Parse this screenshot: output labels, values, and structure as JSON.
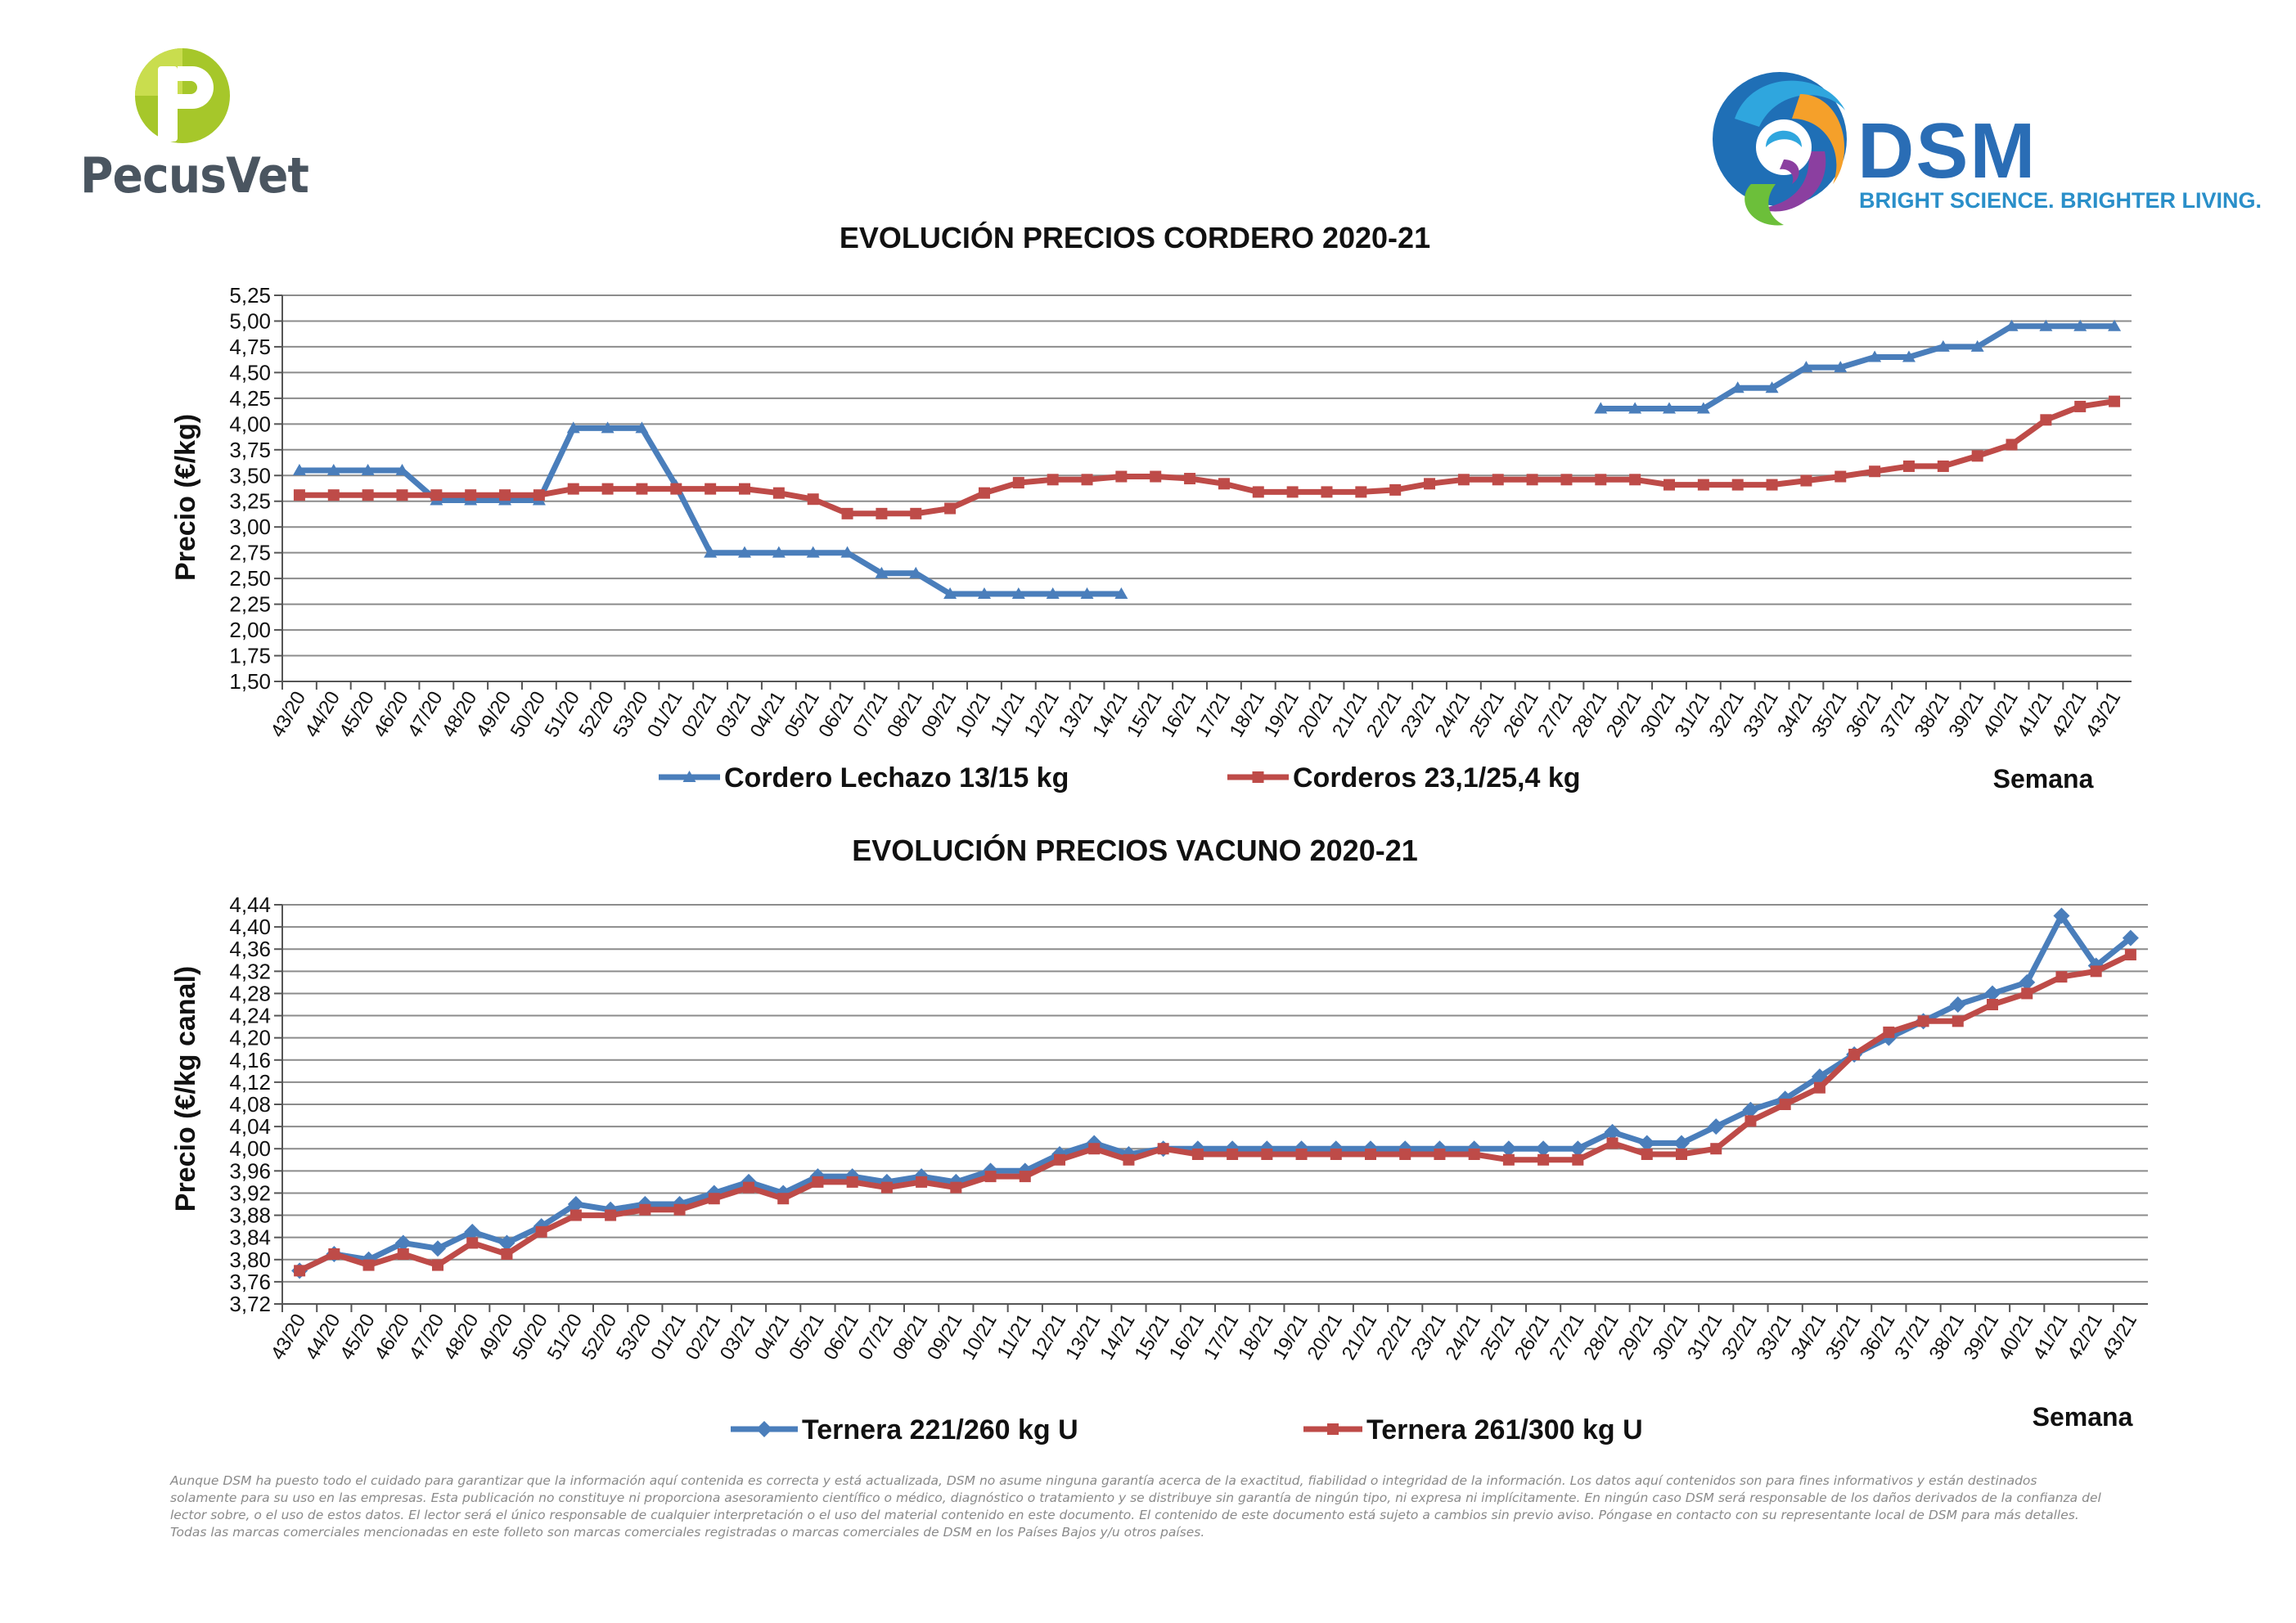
{
  "brand": {
    "pecus_name": "PecusVet",
    "dsm_name": "DSM",
    "dsm_tagline": "BRIGHT SCIENCE. BRIGHTER LIVING.",
    "colors": {
      "pecus_green": "#9bc31b",
      "dsm_blue": "#2a6db5"
    }
  },
  "disclaimer": "Aunque DSM ha puesto todo el cuidado para garantizar que la información aquí contenida es correcta y está actualizada, DSM no asume ninguna garantía acerca de la exactitud, fiabilidad o integridad de la información. Los datos aquí contenidos son para fines informativos y están destinados solamente para su uso en las empresas. Esta publicación no constituye ni proporciona asesoramiento científico o médico, diagnóstico o tratamiento y se distribuye sin garantía de ningún tipo, ni expresa ni implícitamente. En ningún caso DSM será responsable de los daños derivados de la confianza del lector sobre, o el uso de estos datos. El lector será el único responsable de cualquier interpretación o el uso del material contenido en este documento. El contenido de este documento está sujeto a cambios sin previo aviso. Póngase en contacto con su representante local de DSM para más detalles. Todas las marcas comerciales mencionadas en este folleto son marcas comerciales registradas o marcas comerciales de DSM en los Países Bajos y/u otros países.",
  "chart_data": [
    {
      "type": "line",
      "title": "EVOLUCIÓN PRECIOS CORDERO 2020-21",
      "xlabel": "Semana",
      "ylabel": "Precio (€/kg)",
      "ylim": [
        1.5,
        5.25
      ],
      "ytick_step": 0.25,
      "ytick_decimals": 2,
      "grid": true,
      "legend": "bottom",
      "categories": [
        "43/20",
        "44/20",
        "45/20",
        "46/20",
        "47/20",
        "48/20",
        "49/20",
        "50/20",
        "51/20",
        "52/20",
        "53/20",
        "01/21",
        "02/21",
        "03/21",
        "04/21",
        "05/21",
        "06/21",
        "07/21",
        "08/21",
        "09/21",
        "10/21",
        "11/21",
        "12/21",
        "13/21",
        "14/21",
        "15/21",
        "16/21",
        "17/21",
        "18/21",
        "19/21",
        "20/21",
        "21/21",
        "22/21",
        "23/21",
        "24/21",
        "25/21",
        "26/21",
        "27/21",
        "28/21",
        "29/21",
        "30/21",
        "31/21",
        "32/21",
        "33/21",
        "34/21",
        "35/21",
        "36/21",
        "37/21",
        "38/21",
        "39/21",
        "40/21",
        "41/21",
        "42/21",
        "43/21"
      ],
      "series": [
        {
          "name": "Cordero Lechazo 13/15 kg",
          "color": "#4a7ebb",
          "marker": "triangle",
          "values": [
            3.55,
            3.55,
            3.55,
            3.55,
            3.26,
            3.26,
            3.26,
            3.26,
            3.96,
            3.96,
            3.96,
            3.4,
            2.75,
            2.75,
            2.75,
            2.75,
            2.75,
            2.55,
            2.55,
            2.35,
            2.35,
            2.35,
            2.35,
            2.35,
            2.35,
            null,
            null,
            null,
            null,
            null,
            null,
            null,
            null,
            null,
            null,
            null,
            null,
            null,
            4.15,
            4.15,
            4.15,
            4.15,
            4.35,
            4.35,
            4.55,
            4.55,
            4.65,
            4.65,
            4.75,
            4.75,
            4.95,
            4.95,
            4.95,
            4.95
          ]
        },
        {
          "name": "Corderos 23,1/25,4 kg",
          "color": "#be4b48",
          "marker": "square",
          "values": [
            3.31,
            3.31,
            3.31,
            3.31,
            3.31,
            3.31,
            3.31,
            3.31,
            3.37,
            3.37,
            3.37,
            3.37,
            3.37,
            3.37,
            3.33,
            3.27,
            3.13,
            3.13,
            3.13,
            3.18,
            3.33,
            3.43,
            3.46,
            3.46,
            3.49,
            3.49,
            3.47,
            3.42,
            3.34,
            3.34,
            3.34,
            3.34,
            3.36,
            3.42,
            3.46,
            3.46,
            3.46,
            3.46,
            3.46,
            3.46,
            3.41,
            3.41,
            3.41,
            3.41,
            3.45,
            3.49,
            3.54,
            3.59,
            3.59,
            3.69,
            3.8,
            4.04,
            4.17,
            4.22
          ]
        }
      ]
    },
    {
      "type": "line",
      "title": "EVOLUCIÓN PRECIOS VACUNO 2020-21",
      "xlabel": "Semana",
      "ylabel": "Precio (€/kg canal)",
      "ylim": [
        3.72,
        4.44
      ],
      "ytick_step": 0.04,
      "ytick_decimals": 2,
      "grid": true,
      "legend": "bottom",
      "categories": [
        "43/20",
        "44/20",
        "45/20",
        "46/20",
        "47/20",
        "48/20",
        "49/20",
        "50/20",
        "51/20",
        "52/20",
        "53/20",
        "01/21",
        "02/21",
        "03/21",
        "04/21",
        "05/21",
        "06/21",
        "07/21",
        "08/21",
        "09/21",
        "10/21",
        "11/21",
        "12/21",
        "13/21",
        "14/21",
        "15/21",
        "16/21",
        "17/21",
        "18/21",
        "19/21",
        "20/21",
        "21/21",
        "22/21",
        "23/21",
        "24/21",
        "25/21",
        "26/21",
        "27/21",
        "28/21",
        "29/21",
        "30/21",
        "31/21",
        "32/21",
        "33/21",
        "34/21",
        "35/21",
        "36/21",
        "37/21",
        "38/21",
        "39/21",
        "40/21",
        "41/21",
        "42/21",
        "43/21"
      ],
      "series": [
        {
          "name": "Ternera 221/260 kg U",
          "color": "#4a7ebb",
          "marker": "diamond",
          "values": [
            3.78,
            3.81,
            3.8,
            3.83,
            3.82,
            3.85,
            3.83,
            3.86,
            3.9,
            3.89,
            3.9,
            3.9,
            3.92,
            3.94,
            3.92,
            3.95,
            3.95,
            3.94,
            3.95,
            3.94,
            3.96,
            3.96,
            3.99,
            4.01,
            3.99,
            4.0,
            4.0,
            4.0,
            4.0,
            4.0,
            4.0,
            4.0,
            4.0,
            4.0,
            4.0,
            4.0,
            4.0,
            4.0,
            4.03,
            4.01,
            4.01,
            4.04,
            4.07,
            4.09,
            4.13,
            4.17,
            4.2,
            4.23,
            4.26,
            4.28,
            4.3,
            4.42,
            4.33,
            4.38
          ]
        },
        {
          "name": "Ternera 261/300 kg U",
          "color": "#be4b48",
          "marker": "square",
          "values": [
            3.78,
            3.81,
            3.79,
            3.81,
            3.79,
            3.83,
            3.81,
            3.85,
            3.88,
            3.88,
            3.89,
            3.89,
            3.91,
            3.93,
            3.91,
            3.94,
            3.94,
            3.93,
            3.94,
            3.93,
            3.95,
            3.95,
            3.98,
            4.0,
            3.98,
            4.0,
            3.99,
            3.99,
            3.99,
            3.99,
            3.99,
            3.99,
            3.99,
            3.99,
            3.99,
            3.98,
            3.98,
            3.98,
            4.01,
            3.99,
            3.99,
            4.0,
            4.05,
            4.08,
            4.11,
            4.17,
            4.21,
            4.23,
            4.23,
            4.26,
            4.28,
            4.31,
            4.32,
            4.35
          ]
        }
      ]
    }
  ]
}
